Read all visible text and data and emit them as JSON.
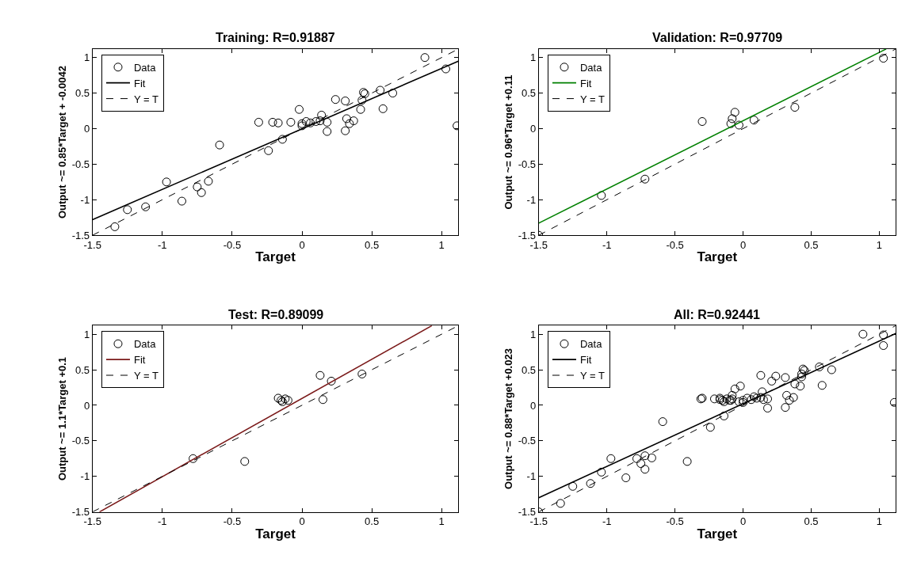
{
  "chart_data": [
    {
      "type": "scatter",
      "title": "Training: R=0.91887",
      "xlabel": "Target",
      "ylabel": "Output ~= 0.85*Target + -0.0042",
      "xlim": [
        -1.5,
        1.12
      ],
      "ylim": [
        -1.5,
        1.12
      ],
      "xticks": [
        -1.5,
        -1,
        -0.5,
        0,
        0.5,
        1
      ],
      "yticks": [
        -1.5,
        -1,
        -0.5,
        0,
        0.5,
        1
      ],
      "legend": "top left",
      "series": [
        {
          "name": "Data",
          "color": "#000000",
          "marker": "circle",
          "x": [
            0.88,
            1.03,
            1.11,
            0.56,
            0.65,
            0.44,
            0.45,
            0.43,
            0.42,
            0.58,
            0.24,
            0.31,
            -0.02,
            0.14,
            -0.31,
            -0.21,
            -0.17,
            -0.08,
            0.0,
            0.03,
            0.06,
            0.1,
            0.13,
            0.18,
            0.0,
            0.18,
            0.31,
            0.32,
            0.37,
            0.34,
            -0.14,
            -0.24,
            -0.59,
            -0.97,
            -0.75,
            -0.67,
            -0.72,
            -0.86,
            -1.12,
            -1.25,
            -1.34
          ],
          "values": [
            1.0,
            0.84,
            0.04,
            0.54,
            0.5,
            0.51,
            0.49,
            0.4,
            0.27,
            0.28,
            0.41,
            0.39,
            0.27,
            0.19,
            0.09,
            0.09,
            0.08,
            0.09,
            0.07,
            0.1,
            0.08,
            0.1,
            0.11,
            0.09,
            0.04,
            -0.04,
            -0.03,
            0.14,
            0.11,
            0.07,
            -0.15,
            -0.31,
            -0.23,
            -0.75,
            -0.82,
            -0.74,
            -0.9,
            -1.02,
            -1.1,
            -1.14,
            -1.38
          ]
        },
        {
          "name": "Fit",
          "type": "line",
          "color": "#000000",
          "line_style": "solid",
          "x": [
            -1.5,
            1.12
          ],
          "values": [
            -1.28,
            0.95
          ]
        },
        {
          "name": "Y = T",
          "type": "line",
          "color": "#000000",
          "line_style": "dashed",
          "x": [
            -1.5,
            1.12
          ],
          "values": [
            -1.5,
            1.12
          ]
        }
      ]
    },
    {
      "type": "scatter",
      "title": "Validation: R=0.97709",
      "xlabel": "Target",
      "ylabel": "Output ~= 0.96*Target +0.11",
      "xlim": [
        -1.5,
        1.12
      ],
      "ylim": [
        -1.5,
        1.12
      ],
      "xticks": [
        -1.5,
        -1,
        -0.5,
        0,
        0.5,
        1
      ],
      "yticks": [
        -1.5,
        -1,
        -0.5,
        0,
        0.5,
        1
      ],
      "legend": "top left",
      "series": [
        {
          "name": "Data",
          "color": "#000000",
          "marker": "circle",
          "x": [
            1.03,
            0.38,
            0.08,
            -0.06,
            -0.08,
            -0.09,
            -0.03,
            -0.3,
            -0.72,
            -1.04,
            -1.5
          ],
          "values": [
            0.99,
            0.3,
            0.12,
            0.23,
            0.14,
            0.07,
            0.05,
            0.1,
            -0.71,
            -0.94,
            -1.5
          ]
        },
        {
          "name": "Fit",
          "type": "line",
          "color": "#008000",
          "line_style": "solid",
          "x": [
            -1.5,
            1.05
          ],
          "values": [
            -1.33,
            1.12
          ]
        },
        {
          "name": "Y = T",
          "type": "line",
          "color": "#000000",
          "line_style": "dashed",
          "x": [
            -1.5,
            1.12
          ],
          "values": [
            -1.5,
            1.12
          ]
        }
      ]
    },
    {
      "type": "scatter",
      "title": "Test: R=0.89099",
      "xlabel": "Target",
      "ylabel": "Output ~= 1.1*Target +0.1",
      "xlim": [
        -1.5,
        1.12
      ],
      "ylim": [
        -1.5,
        1.12
      ],
      "xticks": [
        -1.5,
        -1,
        -0.5,
        0,
        0.5,
        1
      ],
      "yticks": [
        -1.5,
        -1,
        -0.5,
        0,
        0.5,
        1
      ],
      "legend": "top left",
      "series": [
        {
          "name": "Data",
          "color": "#000000",
          "marker": "circle",
          "x": [
            0.43,
            0.13,
            0.21,
            0.15,
            -0.17,
            -0.15,
            -0.12,
            -0.1,
            -0.14,
            -0.78,
            -0.41
          ],
          "values": [
            0.44,
            0.42,
            0.34,
            0.08,
            0.1,
            0.07,
            0.09,
            0.07,
            0.05,
            -0.75,
            -0.79
          ]
        },
        {
          "name": "Fit",
          "type": "line",
          "color": "#7b1a1a",
          "line_style": "solid",
          "x": [
            -1.45,
            0.93
          ],
          "values": [
            -1.5,
            1.12
          ]
        },
        {
          "name": "Y = T",
          "type": "line",
          "color": "#000000",
          "line_style": "dashed",
          "x": [
            -1.5,
            1.12
          ],
          "values": [
            -1.5,
            1.12
          ]
        }
      ]
    },
    {
      "type": "scatter",
      "title": "All: R=0.92441",
      "xlabel": "Target",
      "ylabel": "Output ~= 0.88*Target +0.023",
      "xlim": [
        -1.5,
        1.12
      ],
      "ylim": [
        -1.5,
        1.12
      ],
      "xticks": [
        -1.5,
        -1,
        -0.5,
        0,
        0.5,
        1
      ],
      "yticks": [
        -1.5,
        -1,
        -0.5,
        0,
        0.5,
        1
      ],
      "legend": "top left",
      "series": [
        {
          "name": "Data",
          "color": "#000000",
          "marker": "circle",
          "x": [
            0.88,
            1.03,
            1.11,
            0.56,
            0.65,
            0.44,
            0.45,
            0.43,
            0.42,
            0.58,
            0.24,
            0.31,
            -0.02,
            0.14,
            -0.31,
            -0.21,
            -0.17,
            -0.08,
            0.0,
            0.03,
            0.06,
            0.1,
            0.13,
            0.18,
            0.0,
            0.18,
            0.31,
            0.32,
            0.37,
            0.34,
            -0.14,
            -0.24,
            -0.59,
            -0.97,
            -0.75,
            -0.67,
            -0.72,
            -0.86,
            -1.12,
            -1.25,
            -1.34,
            1.03,
            0.38,
            0.08,
            -0.06,
            -0.08,
            -0.09,
            -0.03,
            -0.3,
            -0.72,
            -1.04,
            -1.5,
            0.43,
            0.13,
            0.21,
            0.15,
            -0.17,
            -0.15,
            -0.12,
            -0.1,
            -0.14,
            -0.78,
            -0.41
          ],
          "values": [
            1.0,
            0.84,
            0.04,
            0.54,
            0.5,
            0.51,
            0.49,
            0.4,
            0.27,
            0.28,
            0.41,
            0.39,
            0.27,
            0.19,
            0.09,
            0.09,
            0.08,
            0.09,
            0.07,
            0.1,
            0.08,
            0.1,
            0.11,
            0.09,
            0.04,
            -0.04,
            -0.03,
            0.14,
            0.11,
            0.07,
            -0.15,
            -0.31,
            -0.23,
            -0.75,
            -0.82,
            -0.74,
            -0.9,
            -1.02,
            -1.1,
            -1.14,
            -1.38,
            0.99,
            0.3,
            0.12,
            0.23,
            0.14,
            0.07,
            0.05,
            0.1,
            -0.71,
            -0.94,
            -1.5,
            0.44,
            0.42,
            0.34,
            0.08,
            0.1,
            0.07,
            0.09,
            0.07,
            0.05,
            -0.75,
            -0.79
          ]
        },
        {
          "name": "Fit",
          "type": "line",
          "color": "#000000",
          "line_style": "solid",
          "x": [
            -1.5,
            1.12
          ],
          "values": [
            -1.3,
            1.01
          ]
        },
        {
          "name": "Y = T",
          "type": "line",
          "color": "#000000",
          "line_style": "dashed",
          "x": [
            -1.5,
            1.12
          ],
          "values": [
            -1.5,
            1.12
          ]
        }
      ]
    }
  ]
}
